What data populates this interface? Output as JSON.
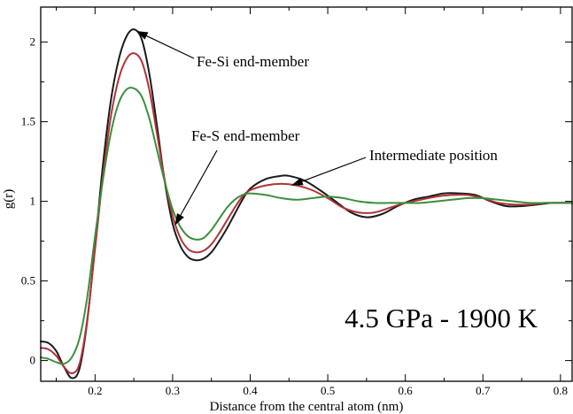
{
  "chart_data": {
    "type": "line",
    "xlabel": "Distance from the central atom (nm)",
    "ylabel": "g(r)",
    "xlim": [
      0.13,
      0.815
    ],
    "ylim": [
      -0.13,
      2.22
    ],
    "xticks": [
      0.2,
      0.3,
      0.4,
      0.5,
      0.6,
      0.7,
      0.8
    ],
    "yticks": [
      0,
      0.5,
      1,
      1.5,
      2
    ],
    "xtick_labels": [
      "0.2",
      "0.3",
      "0.4",
      "0.5",
      "0.6",
      "0.7",
      "0.8"
    ],
    "ytick_labels": [
      "0",
      "0.5",
      "1",
      "1.5",
      "2"
    ],
    "grid": false,
    "series": [
      {
        "color": "#1a1a1a",
        "points": [
          [
            0.13,
            0.12
          ],
          [
            0.14,
            0.11
          ],
          [
            0.15,
            0.06
          ],
          [
            0.16,
            -0.04
          ],
          [
            0.17,
            -0.11
          ],
          [
            0.18,
            -0.05
          ],
          [
            0.19,
            0.25
          ],
          [
            0.2,
            0.72
          ],
          [
            0.21,
            1.22
          ],
          [
            0.22,
            1.62
          ],
          [
            0.23,
            1.88
          ],
          [
            0.24,
            2.03
          ],
          [
            0.25,
            2.08
          ],
          [
            0.26,
            2.02
          ],
          [
            0.27,
            1.8
          ],
          [
            0.28,
            1.47
          ],
          [
            0.29,
            1.12
          ],
          [
            0.3,
            0.86
          ],
          [
            0.31,
            0.72
          ],
          [
            0.32,
            0.65
          ],
          [
            0.33,
            0.63
          ],
          [
            0.34,
            0.64
          ],
          [
            0.35,
            0.68
          ],
          [
            0.36,
            0.75
          ],
          [
            0.37,
            0.83
          ],
          [
            0.38,
            0.92
          ],
          [
            0.39,
            1.01
          ],
          [
            0.4,
            1.08
          ],
          [
            0.42,
            1.14
          ],
          [
            0.44,
            1.16
          ],
          [
            0.45,
            1.16
          ],
          [
            0.47,
            1.13
          ],
          [
            0.49,
            1.07
          ],
          [
            0.51,
            1.0
          ],
          [
            0.53,
            0.93
          ],
          [
            0.55,
            0.9
          ],
          [
            0.57,
            0.92
          ],
          [
            0.59,
            0.97
          ],
          [
            0.61,
            1.01
          ],
          [
            0.63,
            1.03
          ],
          [
            0.65,
            1.05
          ],
          [
            0.67,
            1.05
          ],
          [
            0.69,
            1.04
          ],
          [
            0.71,
            1.0
          ],
          [
            0.73,
            0.97
          ],
          [
            0.75,
            0.97
          ],
          [
            0.77,
            0.98
          ],
          [
            0.79,
            0.99
          ],
          [
            0.815,
            0.99
          ]
        ]
      },
      {
        "color": "#b0333a",
        "points": [
          [
            0.13,
            0.08
          ],
          [
            0.14,
            0.07
          ],
          [
            0.15,
            0.03
          ],
          [
            0.16,
            -0.04
          ],
          [
            0.17,
            -0.08
          ],
          [
            0.18,
            -0.02
          ],
          [
            0.19,
            0.26
          ],
          [
            0.2,
            0.7
          ],
          [
            0.21,
            1.15
          ],
          [
            0.22,
            1.52
          ],
          [
            0.23,
            1.76
          ],
          [
            0.24,
            1.89
          ],
          [
            0.25,
            1.93
          ],
          [
            0.26,
            1.88
          ],
          [
            0.27,
            1.7
          ],
          [
            0.28,
            1.42
          ],
          [
            0.29,
            1.13
          ],
          [
            0.3,
            0.91
          ],
          [
            0.31,
            0.77
          ],
          [
            0.32,
            0.7
          ],
          [
            0.33,
            0.68
          ],
          [
            0.34,
            0.69
          ],
          [
            0.35,
            0.73
          ],
          [
            0.36,
            0.8
          ],
          [
            0.37,
            0.88
          ],
          [
            0.38,
            0.96
          ],
          [
            0.39,
            1.03
          ],
          [
            0.4,
            1.07
          ],
          [
            0.42,
            1.1
          ],
          [
            0.44,
            1.11
          ],
          [
            0.46,
            1.1
          ],
          [
            0.48,
            1.07
          ],
          [
            0.5,
            1.02
          ],
          [
            0.52,
            0.96
          ],
          [
            0.54,
            0.93
          ],
          [
            0.56,
            0.93
          ],
          [
            0.58,
            0.96
          ],
          [
            0.6,
            0.99
          ],
          [
            0.62,
            1.01
          ],
          [
            0.64,
            1.03
          ],
          [
            0.66,
            1.04
          ],
          [
            0.68,
            1.04
          ],
          [
            0.7,
            1.02
          ],
          [
            0.72,
            0.99
          ],
          [
            0.74,
            0.98
          ],
          [
            0.76,
            0.98
          ],
          [
            0.78,
            0.99
          ],
          [
            0.8,
            0.99
          ],
          [
            0.815,
            0.99
          ]
        ]
      },
      {
        "color": "#3b8f3b",
        "points": [
          [
            0.13,
            0.02
          ],
          [
            0.14,
            0.01
          ],
          [
            0.15,
            -0.01
          ],
          [
            0.16,
            -0.02
          ],
          [
            0.17,
            0.02
          ],
          [
            0.18,
            0.14
          ],
          [
            0.19,
            0.4
          ],
          [
            0.2,
            0.78
          ],
          [
            0.21,
            1.13
          ],
          [
            0.22,
            1.42
          ],
          [
            0.23,
            1.61
          ],
          [
            0.24,
            1.7
          ],
          [
            0.25,
            1.71
          ],
          [
            0.26,
            1.66
          ],
          [
            0.27,
            1.52
          ],
          [
            0.28,
            1.32
          ],
          [
            0.29,
            1.12
          ],
          [
            0.3,
            0.95
          ],
          [
            0.31,
            0.84
          ],
          [
            0.32,
            0.78
          ],
          [
            0.33,
            0.76
          ],
          [
            0.34,
            0.77
          ],
          [
            0.35,
            0.82
          ],
          [
            0.36,
            0.89
          ],
          [
            0.37,
            0.96
          ],
          [
            0.38,
            1.01
          ],
          [
            0.39,
            1.04
          ],
          [
            0.4,
            1.05
          ],
          [
            0.42,
            1.04
          ],
          [
            0.44,
            1.02
          ],
          [
            0.46,
            1.01
          ],
          [
            0.48,
            1.02
          ],
          [
            0.5,
            1.03
          ],
          [
            0.52,
            1.02
          ],
          [
            0.54,
            1.0
          ],
          [
            0.56,
            0.99
          ],
          [
            0.58,
            0.99
          ],
          [
            0.6,
            0.99
          ],
          [
            0.62,
            0.99
          ],
          [
            0.64,
            1.0
          ],
          [
            0.66,
            1.01
          ],
          [
            0.68,
            1.02
          ],
          [
            0.7,
            1.02
          ],
          [
            0.72,
            1.01
          ],
          [
            0.74,
            1.0
          ],
          [
            0.76,
            0.99
          ],
          [
            0.78,
            0.99
          ],
          [
            0.8,
            0.99
          ],
          [
            0.815,
            0.99
          ]
        ]
      }
    ],
    "annotations": [
      {
        "text": "Fe-Si end-member",
        "arrow_to": [
          0.253,
          2.07
        ]
      },
      {
        "text": "Fe-S end-member",
        "arrow_to": [
          0.303,
          0.85
        ]
      },
      {
        "text": "Intermediate position",
        "arrow_to": [
          0.453,
          1.1
        ]
      }
    ],
    "condition_label": "4.5 GPa - 1900 K"
  }
}
